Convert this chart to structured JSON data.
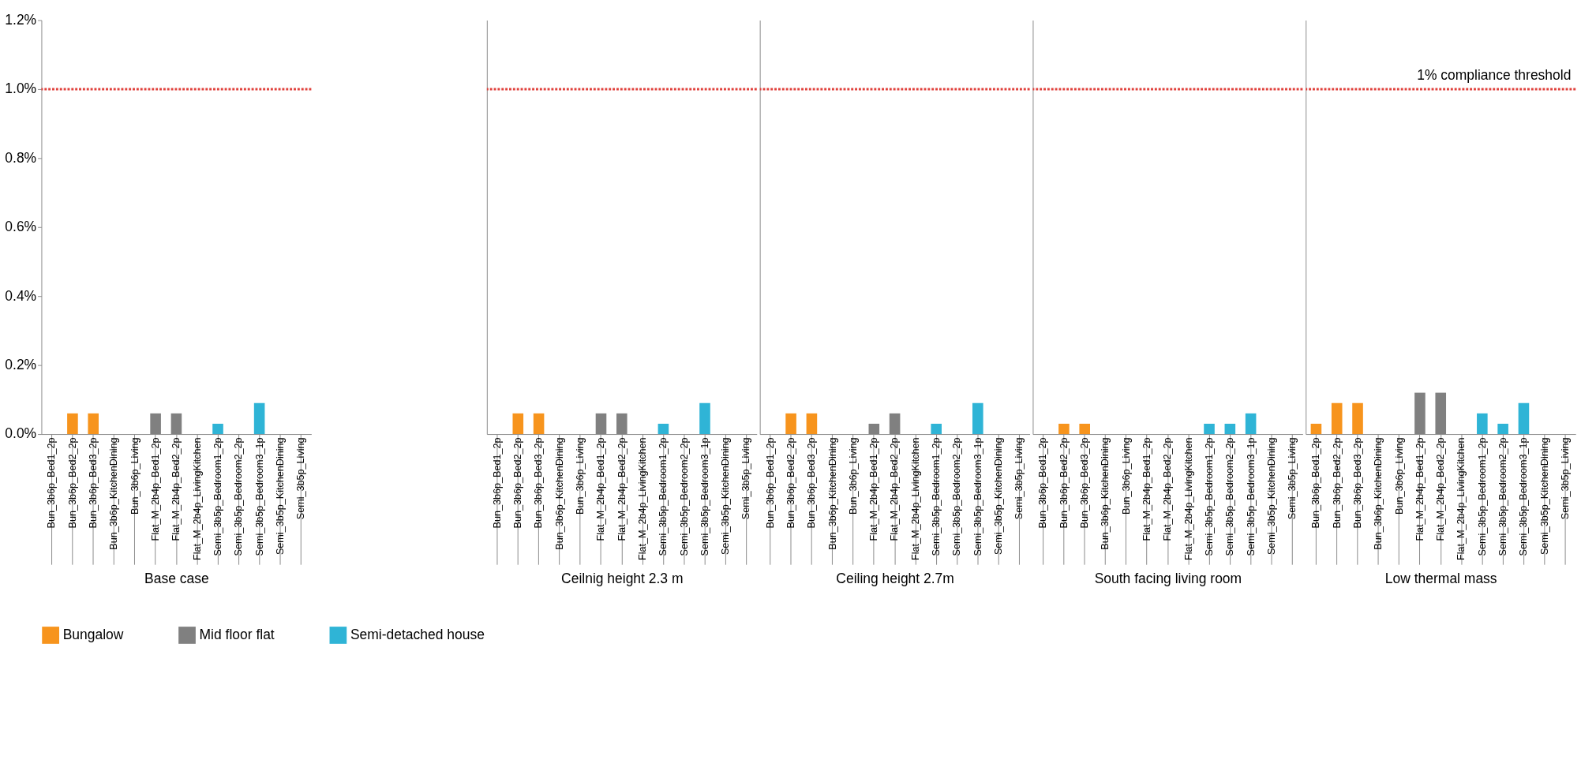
{
  "chart_data": [
    {
      "type": "bar",
      "xlabel": "Base case",
      "categories": [
        "Bun_3b6p_Bed1_2p",
        "Bun_3b6p_Bed2_2p",
        "Bun_3b6p_Bed3_2p",
        "Bun_3b6p_KitchenDining",
        "Bun_3b6p_Living",
        "Flat_M_2b4p_Bed1_2p",
        "Flat_M_2b4p_Bed2_2p",
        "Flat_M_2b4p_LivingKitchen",
        "Semi_3b5p_Bedroom1_2p",
        "Semi_3b5p_Bedroom2_2p",
        "Semi_3b5p_Bedroom3_1p",
        "Semi_3b5p_KitchenDining",
        "Semi_3b5p_Living"
      ],
      "series": [
        {
          "name": "Bungalow",
          "color": "#f7941d",
          "values": [
            0,
            0.06,
            0.06,
            0,
            0,
            null,
            null,
            null,
            null,
            null,
            null,
            null,
            null
          ]
        },
        {
          "name": "Mid floor flat",
          "color": "#808080",
          "values": [
            null,
            null,
            null,
            null,
            null,
            0.06,
            0.06,
            0,
            null,
            null,
            null,
            null,
            null
          ]
        },
        {
          "name": "Semi-detached house",
          "color": "#2fb4d6",
          "values": [
            null,
            null,
            null,
            null,
            null,
            null,
            null,
            null,
            0.03,
            0,
            0.09,
            0,
            0
          ]
        }
      ],
      "ylim": [
        0,
        1.2
      ],
      "yticks": [
        {
          "value": 0,
          "label": "0.0%"
        },
        {
          "value": 0.2,
          "label": "0.2%"
        },
        {
          "value": 0.4,
          "label": "0.4%"
        },
        {
          "value": 0.6,
          "label": "0.6%"
        },
        {
          "value": 0.8,
          "label": "0.8%"
        },
        {
          "value": 1.0,
          "label": "1.0%"
        },
        {
          "value": 1.2,
          "label": "1.2%"
        }
      ],
      "ref_lines": [
        {
          "axis": "y",
          "value": 1.0,
          "color": "#e0413c",
          "line_style": "dotted"
        }
      ],
      "legend": "bottom"
    },
    {
      "type": "bar",
      "xlabel": "Ceilnig height 2.3 m",
      "tick_labels": "x",
      "categories": [
        "Bun_3b6p_Bed1_2p",
        "Bun_3b6p_Bed2_2p",
        "Bun_3b6p_Bed3_2p",
        "Bun_3b6p_KitchenDining",
        "Bun_3b6p_Living",
        "Flat_M_2b4p_Bed1_2p",
        "Flat_M_2b4p_Bed2_2p",
        "Flat_M_2b4p_LivingKitchen",
        "Semi_3b5p_Bedroom1_2p",
        "Semi_3b5p_Bedroom2_2p",
        "Semi_3b5p_Bedroom3_1p",
        "Semi_3b5p_KitchenDining",
        "Semi_3b5p_Living"
      ],
      "series": [
        {
          "color": "#f7941d",
          "values": [
            0,
            0.06,
            0.06,
            0,
            0,
            null,
            null,
            null,
            null,
            null,
            null,
            null,
            null
          ]
        },
        {
          "color": "#808080",
          "values": [
            null,
            null,
            null,
            null,
            null,
            0.06,
            0.06,
            0,
            null,
            null,
            null,
            null,
            null
          ]
        },
        {
          "color": "#2fb4d6",
          "values": [
            null,
            null,
            null,
            null,
            null,
            null,
            null,
            null,
            0.03,
            0,
            0.09,
            0,
            0
          ]
        }
      ],
      "ylim": [
        0,
        1.2
      ],
      "yticks": [
        {
          "value": 0,
          "label": null
        },
        {
          "value": 1.2,
          "label": null
        }
      ],
      "ref_lines": [
        {
          "axis": "y",
          "value": 1.0,
          "color": "#e0413c",
          "line_style": "dotted"
        }
      ]
    },
    {
      "type": "bar",
      "xlabel": "Ceiling height 2.7m",
      "tick_labels": "x",
      "categories": [
        "Bun_3b6p_Bed1_2p",
        "Bun_3b6p_Bed2_2p",
        "Bun_3b6p_Bed3_2p",
        "Bun_3b6p_KitchenDining",
        "Bun_3b6p_Living",
        "Flat_M_2b4p_Bed1_2p",
        "Flat_M_2b4p_Bed2_2p",
        "Flat_M_2b4p_LivingKitchen",
        "Semi_3b5p_Bedroom1_2p",
        "Semi_3b5p_Bedroom2_2p",
        "Semi_3b5p_Bedroom3_1p",
        "Semi_3b5p_KitchenDining",
        "Semi_3b5p_Living"
      ],
      "series": [
        {
          "color": "#f7941d",
          "values": [
            0,
            0.06,
            0.06,
            0,
            0,
            null,
            null,
            null,
            null,
            null,
            null,
            null,
            null
          ]
        },
        {
          "color": "#808080",
          "values": [
            null,
            null,
            null,
            null,
            null,
            0.03,
            0.06,
            0,
            null,
            null,
            null,
            null,
            null
          ]
        },
        {
          "color": "#2fb4d6",
          "values": [
            null,
            null,
            null,
            null,
            null,
            null,
            null,
            null,
            0.03,
            0,
            0.09,
            0,
            0
          ]
        }
      ],
      "ylim": [
        0,
        1.2
      ],
      "yticks": [
        {
          "value": 0,
          "label": null
        },
        {
          "value": 1.2,
          "label": null
        }
      ],
      "ref_lines": [
        {
          "axis": "y",
          "value": 1.0,
          "color": "#e0413c",
          "line_style": "dotted"
        }
      ]
    },
    {
      "type": "bar",
      "xlabel": "South facing living room",
      "tick_labels": "x",
      "categories": [
        "Bun_3b6p_Bed1_2p",
        "Bun_3b6p_Bed2_2p",
        "Bun_3b6p_Bed3_2p",
        "Bun_3b6p_KitchenDining",
        "Bun_3b6p_Living",
        "Flat_M_2b4p_Bed1_2p",
        "Flat_M_2b4p_Bed2_2p",
        "Flat_M_2b4p_LivingKitchen",
        "Semi_3b5p_Bedroom1_2p",
        "Semi_3b5p_Bedroom2_2p",
        "Semi_3b5p_Bedroom3_1p",
        "Semi_3b5p_KitchenDining",
        "Semi_3b5p_Living"
      ],
      "series": [
        {
          "color": "#f7941d",
          "values": [
            0,
            0.03,
            0.03,
            0,
            0,
            null,
            null,
            null,
            null,
            null,
            null,
            null,
            null
          ]
        },
        {
          "color": "#808080",
          "values": [
            null,
            null,
            null,
            null,
            null,
            0,
            0,
            0,
            null,
            null,
            null,
            null,
            null
          ]
        },
        {
          "color": "#2fb4d6",
          "values": [
            null,
            null,
            null,
            null,
            null,
            null,
            null,
            null,
            0.03,
            0.03,
            0.06,
            0,
            0
          ]
        }
      ],
      "ylim": [
        0,
        1.2
      ],
      "yticks": [
        {
          "value": 0,
          "label": null
        },
        {
          "value": 1.2,
          "label": null
        }
      ],
      "ref_lines": [
        {
          "axis": "y",
          "value": 1.0,
          "color": "#e0413c",
          "line_style": "dotted"
        }
      ]
    },
    {
      "type": "bar",
      "xlabel": "Low thermal mass",
      "tick_labels": "x",
      "categories": [
        "Bun_3b6p_Bed1_2p",
        "Bun_3b6p_Bed2_2p",
        "Bun_3b6p_Bed3_2p",
        "Bun_3b6p_KitchenDining",
        "Bun_3b6p_Living",
        "Flat_M_2b4p_Bed1_2p",
        "Flat_M_2b4p_Bed2_2p",
        "Flat_M_2b4p_LivingKitchen",
        "Semi_3b5p_Bedroom1_2p",
        "Semi_3b5p_Bedroom2_2p",
        "Semi_3b5p_Bedroom3_1p",
        "Semi_3b5p_KitchenDining",
        "Semi_3b5p_Living"
      ],
      "series": [
        {
          "color": "#f7941d",
          "values": [
            0.03,
            0.09,
            0.09,
            0,
            0,
            null,
            null,
            null,
            null,
            null,
            null,
            null,
            null
          ]
        },
        {
          "color": "#808080",
          "values": [
            null,
            null,
            null,
            null,
            null,
            0.12,
            0.12,
            0,
            null,
            null,
            null,
            null,
            null
          ]
        },
        {
          "color": "#2fb4d6",
          "values": [
            null,
            null,
            null,
            null,
            null,
            null,
            null,
            null,
            0.06,
            0.03,
            0.09,
            0,
            0
          ]
        }
      ],
      "ylim": [
        0,
        1.2
      ],
      "yticks": [
        {
          "value": 0,
          "label": null
        },
        {
          "value": 1.2,
          "label": null
        }
      ],
      "ref_lines": [
        {
          "axis": "y",
          "value": 1.0,
          "color": "#e0413c",
          "line_style": "dotted",
          "label": "1% compliance threshold"
        }
      ]
    }
  ]
}
